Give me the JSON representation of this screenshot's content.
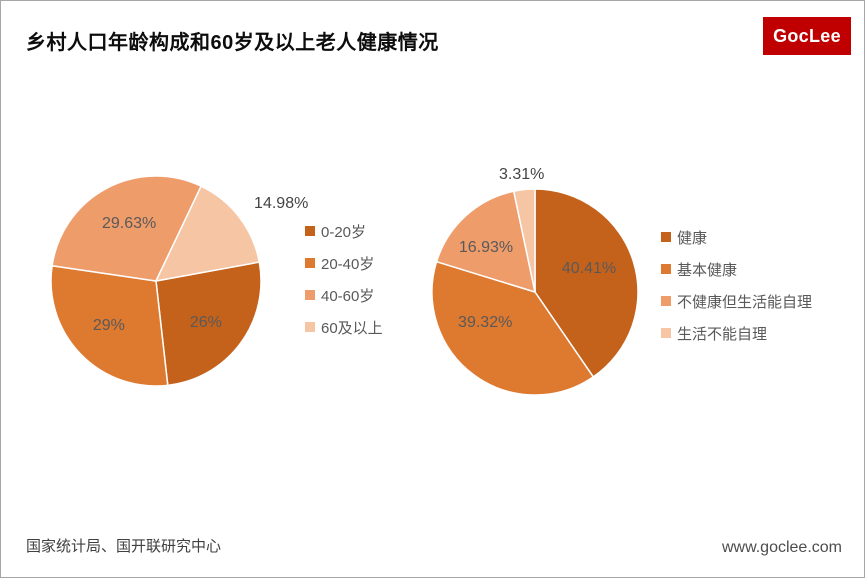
{
  "header": {
    "title": "乡村人口年龄构成和60岁及以上老人健康情况",
    "logo": "GocLee"
  },
  "footer": {
    "source": "国家统计局、国开联研究中心",
    "website": "www.goclee.com"
  },
  "colors": {
    "palette": [
      "#C4621C",
      "#DE7930",
      "#EF9C6B",
      "#F5C5A4"
    ],
    "label_inside": "#595959",
    "label_outside": "#444444",
    "legend_text": "#595959",
    "logo_bg": "#C00000",
    "logo_text": "#FFFFFF",
    "border": "#A6A6A6"
  },
  "chart_data": [
    {
      "type": "pie",
      "legend_position": "right",
      "start_angle": 79.6,
      "slices": [
        {
          "label": "0-20岁",
          "value": 26,
          "display": "26%",
          "color": "#C4621C",
          "label_angle": 130.0,
          "label_r": 0.62,
          "outside": false
        },
        {
          "label": "20-40岁",
          "value": 29,
          "display": "29%",
          "color": "#DE7930",
          "label_angle": 226.3,
          "label_r": 0.62,
          "outside": false
        },
        {
          "label": "40-60岁",
          "value": 29.63,
          "display": "29.63%",
          "color": "#EF9C6B",
          "label_angle": 334.7,
          "label_r": 0.6,
          "outside": false
        },
        {
          "label": "60及以上",
          "value": 14.98,
          "display": "14.98%",
          "color": "#F5C5A4",
          "label_angle": 58.4,
          "label_r": 1.4,
          "outside": true
        }
      ]
    },
    {
      "type": "pie",
      "legend_position": "right",
      "start_angle": 0,
      "slices": [
        {
          "label": "健康",
          "value": 40.41,
          "display": "40.41%",
          "color": "#C4621C",
          "label_angle": 67.0,
          "label_r": 0.57,
          "outside": false
        },
        {
          "label": "基本健康",
          "value": 39.32,
          "display": "39.32%",
          "color": "#DE7930",
          "label_angle": 238.0,
          "label_r": 0.57,
          "outside": false
        },
        {
          "label": "不健康但生活能自理",
          "value": 16.93,
          "display": "16.93%",
          "color": "#EF9C6B",
          "label_angle": 312.0,
          "label_r": 0.64,
          "outside": false
        },
        {
          "label": "生活不能自理",
          "value": 3.31,
          "display": "3.31%",
          "color": "#F5C5A4",
          "label_angle": 353.5,
          "label_r": 1.14,
          "outside": true
        }
      ]
    }
  ]
}
